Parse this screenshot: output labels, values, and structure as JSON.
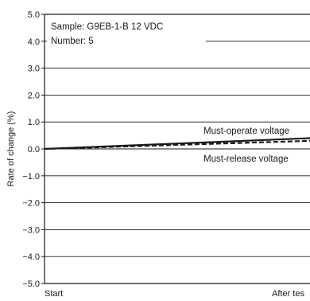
{
  "chart_data": {
    "type": "line",
    "title": "",
    "xlabel": "",
    "ylabel": "Rate of change (%)",
    "categories": [
      "Start",
      "After tes"
    ],
    "ylim": [
      -5.0,
      5.0
    ],
    "ytick_labels": [
      "5.0",
      "4.0",
      "3.0",
      "2.0",
      "1.0",
      "0.0",
      "−1.0",
      "−2.0",
      "−3.0",
      "−4.0",
      "−5.0"
    ],
    "ytick_values": [
      5,
      4,
      3,
      2,
      1,
      0,
      -1,
      -2,
      -3,
      -4,
      -5
    ],
    "grid": true,
    "series": [
      {
        "name": "Must-operate voltage",
        "values": [
          0.0,
          0.4
        ]
      },
      {
        "name": "Must-release voltage",
        "values": [
          0.0,
          0.3
        ]
      }
    ],
    "annotations": {
      "sample": "Sample: G9EB-1-B 12 VDC",
      "number": "Number: 5"
    }
  }
}
